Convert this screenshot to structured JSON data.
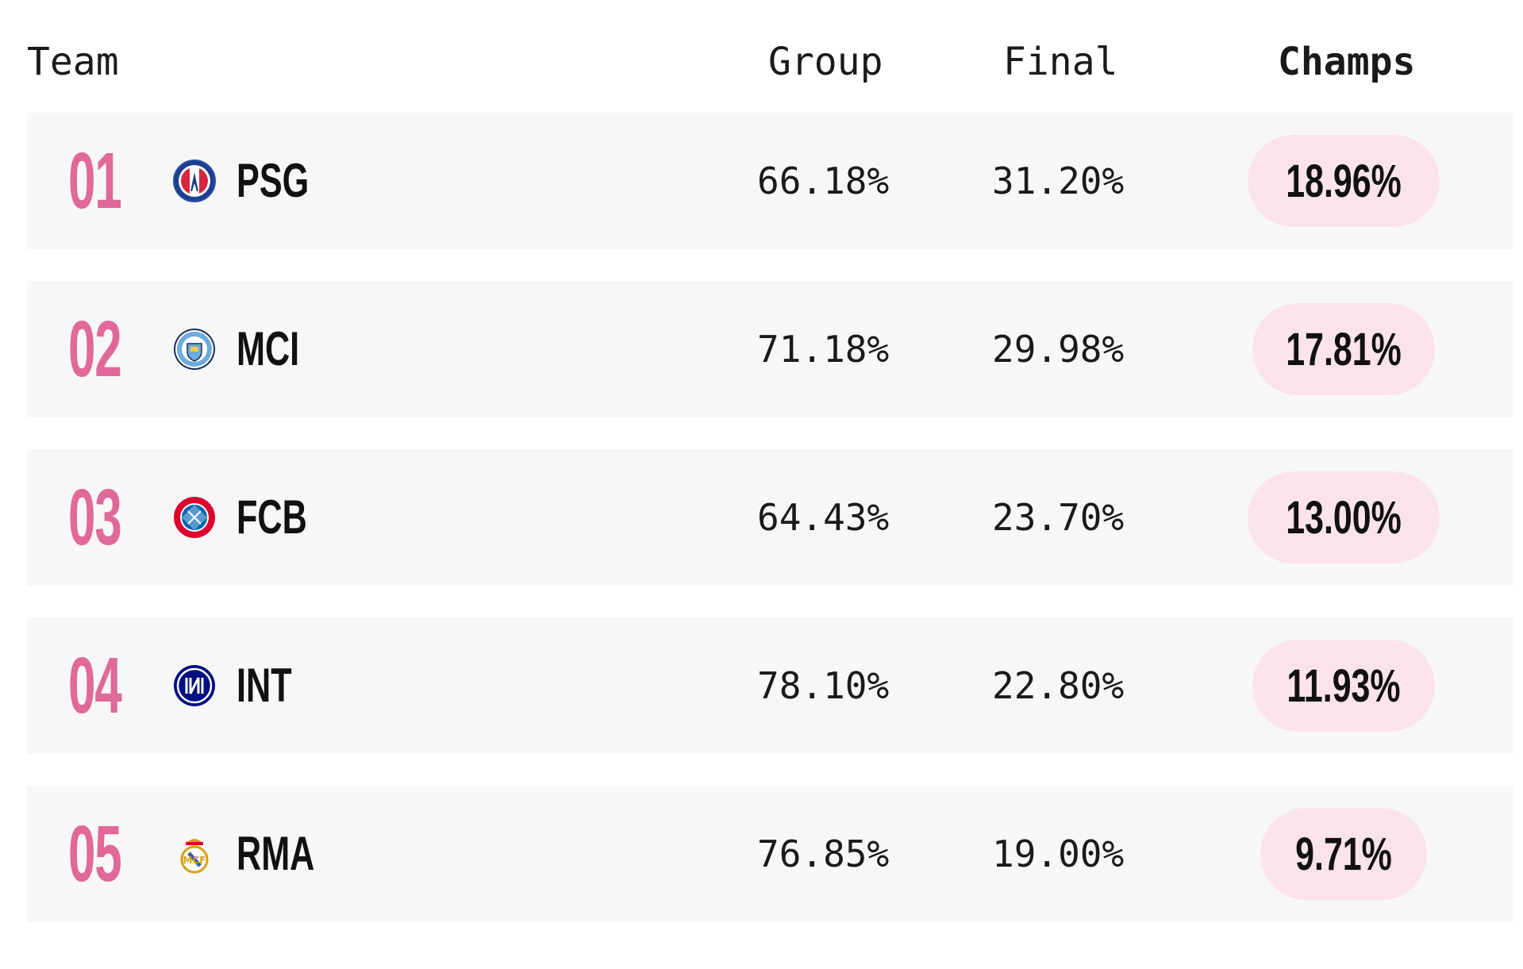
{
  "header": {
    "team": "Team",
    "group": "Group",
    "final": "Final",
    "champs": "Champs"
  },
  "colors": {
    "rank": "#e0699a",
    "pill": "#fbe3ec",
    "row_bg": "#f7f7f7"
  },
  "rows": [
    {
      "rank": "01",
      "abbr": "PSG",
      "crest": "psg-crest-icon",
      "group": "66.18%",
      "final": "31.20%",
      "champs": "18.96%"
    },
    {
      "rank": "02",
      "abbr": "MCI",
      "crest": "mci-crest-icon",
      "group": "71.18%",
      "final": "29.98%",
      "champs": "17.81%"
    },
    {
      "rank": "03",
      "abbr": "FCB",
      "crest": "fcb-crest-icon",
      "group": "64.43%",
      "final": "23.70%",
      "champs": "13.00%"
    },
    {
      "rank": "04",
      "abbr": "INT",
      "crest": "int-crest-icon",
      "group": "78.10%",
      "final": "22.80%",
      "champs": "11.93%"
    },
    {
      "rank": "05",
      "abbr": "RMA",
      "crest": "rma-crest-icon",
      "group": "76.85%",
      "final": "19.00%",
      "champs": "9.71%"
    }
  ]
}
